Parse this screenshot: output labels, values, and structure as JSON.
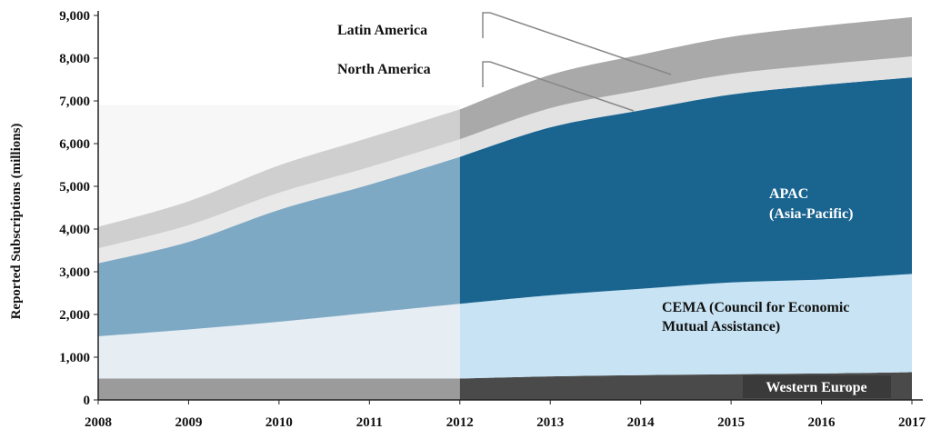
{
  "chart_data": {
    "type": "area",
    "stacked": true,
    "title": "",
    "xlabel": "",
    "ylabel": "Reported Subscriptions (millions)",
    "ylim": [
      0,
      9000
    ],
    "xlim": [
      2008,
      2017
    ],
    "x": [
      2008,
      2009,
      2010,
      2011,
      2012,
      2013,
      2014,
      2015,
      2016,
      2017
    ],
    "y_ticks": [
      "0",
      "1,000",
      "2,000",
      "3,000",
      "4,000",
      "5,000",
      "6,000",
      "7,000",
      "8,000",
      "9,000"
    ],
    "x_ticks": [
      "2008",
      "2009",
      "2010",
      "2011",
      "2012",
      "2013",
      "2014",
      "2015",
      "2016",
      "2017"
    ],
    "actual_through": 2012,
    "series": [
      {
        "name": "Western Europe",
        "label": "Western Europe",
        "values": [
          500,
          500,
          500,
          500,
          500,
          550,
          580,
          600,
          620,
          650
        ],
        "color_actual": "#9b9b9b",
        "color_forecast": "#4a4a4a"
      },
      {
        "name": "CEMA",
        "label_lines": [
          "CEMA (Council for Economic",
          "Mutual Assistance)"
        ],
        "values": [
          990,
          1150,
          1330,
          1540,
          1750,
          1900,
          2020,
          2150,
          2200,
          2300
        ],
        "color_actual": "#e6eef4",
        "color_forecast": "#c8e4f4"
      },
      {
        "name": "APAC",
        "label_lines": [
          "APAC",
          "(Asia-Pacific)"
        ],
        "values": [
          1710,
          2050,
          2620,
          3000,
          3440,
          3930,
          4180,
          4400,
          4550,
          4600
        ],
        "color_actual": "#7ea9c4",
        "color_forecast": "#1a6490"
      },
      {
        "name": "North America",
        "label": "North America",
        "values": [
          350,
          390,
          400,
          410,
          410,
          450,
          470,
          480,
          480,
          490
        ],
        "color_actual": "#e9e9e9",
        "color_forecast": "#e2e2e2"
      },
      {
        "name": "Latin America",
        "label": "Latin America",
        "values": [
          500,
          560,
          640,
          690,
          700,
          780,
          830,
          870,
          900,
          920
        ],
        "color_actual": "#cfcfcf",
        "color_forecast": "#a9a9a9"
      }
    ]
  }
}
